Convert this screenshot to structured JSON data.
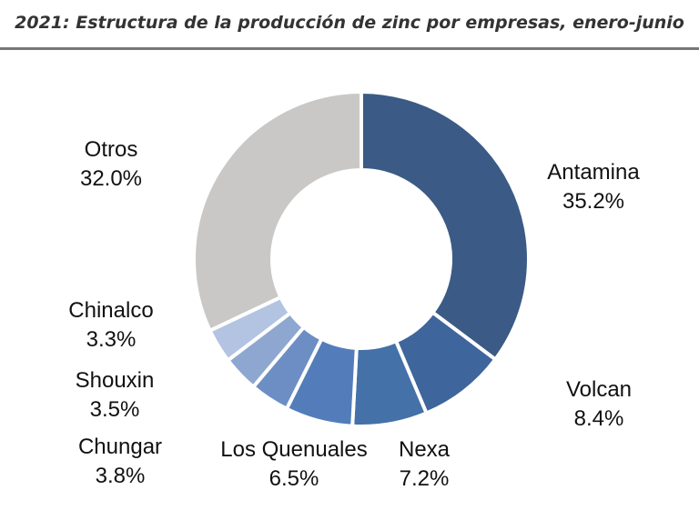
{
  "chart_data": {
    "type": "pie",
    "title": "2021: Estructura de la producción de zinc por empresas, enero-junio",
    "slices": [
      {
        "name": "Antamina",
        "value": 35.2,
        "value_label": "35.2%",
        "color": "#3b5a86"
      },
      {
        "name": "Volcan",
        "value": 8.4,
        "value_label": "8.4%",
        "color": "#3e659c"
      },
      {
        "name": "Nexa",
        "value": 7.2,
        "value_label": "7.2%",
        "color": "#4471a8"
      },
      {
        "name": "Los Quenuales",
        "value": 6.5,
        "value_label": "6.5%",
        "color": "#537dba"
      },
      {
        "name": "Chungar",
        "value": 3.8,
        "value_label": "3.8%",
        "color": "#6d8ec4"
      },
      {
        "name": "Shouxin",
        "value": 3.5,
        "value_label": "3.5%",
        "color": "#8ea7d0"
      },
      {
        "name": "Chinalco",
        "value": 3.3,
        "value_label": "3.3%",
        "color": "#b3c3e2"
      },
      {
        "name": "Otros",
        "value": 32.0,
        "value_label": "32.0%",
        "color": "#cac8c6"
      }
    ]
  }
}
